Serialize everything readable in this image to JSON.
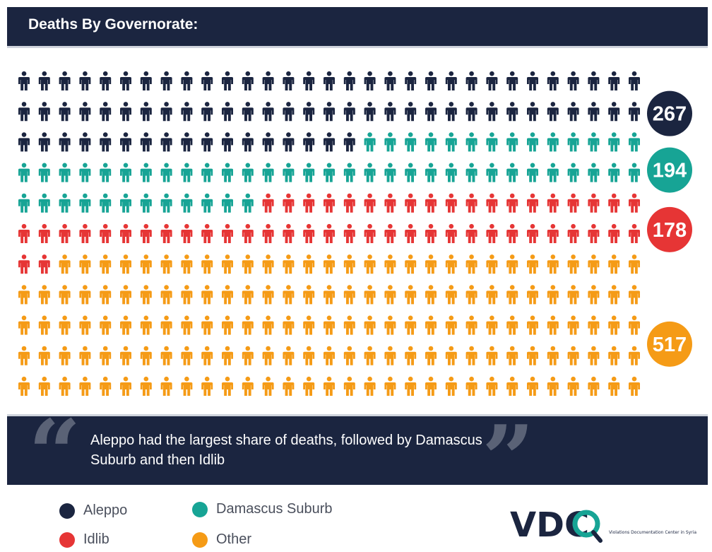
{
  "header": {
    "title": "Deaths By Governorate:"
  },
  "chart_data": {
    "type": "pictogram",
    "columns": 31,
    "total_icons": 341,
    "categories": [
      "Aleppo",
      "Damascus Suburb",
      "Idlib",
      "Other"
    ],
    "values": [
      267,
      194,
      178,
      517
    ],
    "icon_counts": [
      79,
      57,
      52,
      153
    ],
    "colors": [
      "#1b2540",
      "#17a495",
      "#e63535",
      "#f59b16"
    ],
    "labels": [
      "267",
      "194",
      "178",
      "517"
    ]
  },
  "quote": {
    "text": "Aleppo had the largest share of deaths, followed by Damascus Suburb and then Idlib"
  },
  "legend": [
    {
      "label": "Aleppo",
      "color": "#1b2540"
    },
    {
      "label": "Damascus Suburb",
      "color": "#17a495"
    },
    {
      "label": "Idlib",
      "color": "#e63535"
    },
    {
      "label": "Other",
      "color": "#f59b16"
    }
  ],
  "logo": {
    "text": "VDC",
    "subtitle": "Violations Documentation Center in Syria"
  }
}
